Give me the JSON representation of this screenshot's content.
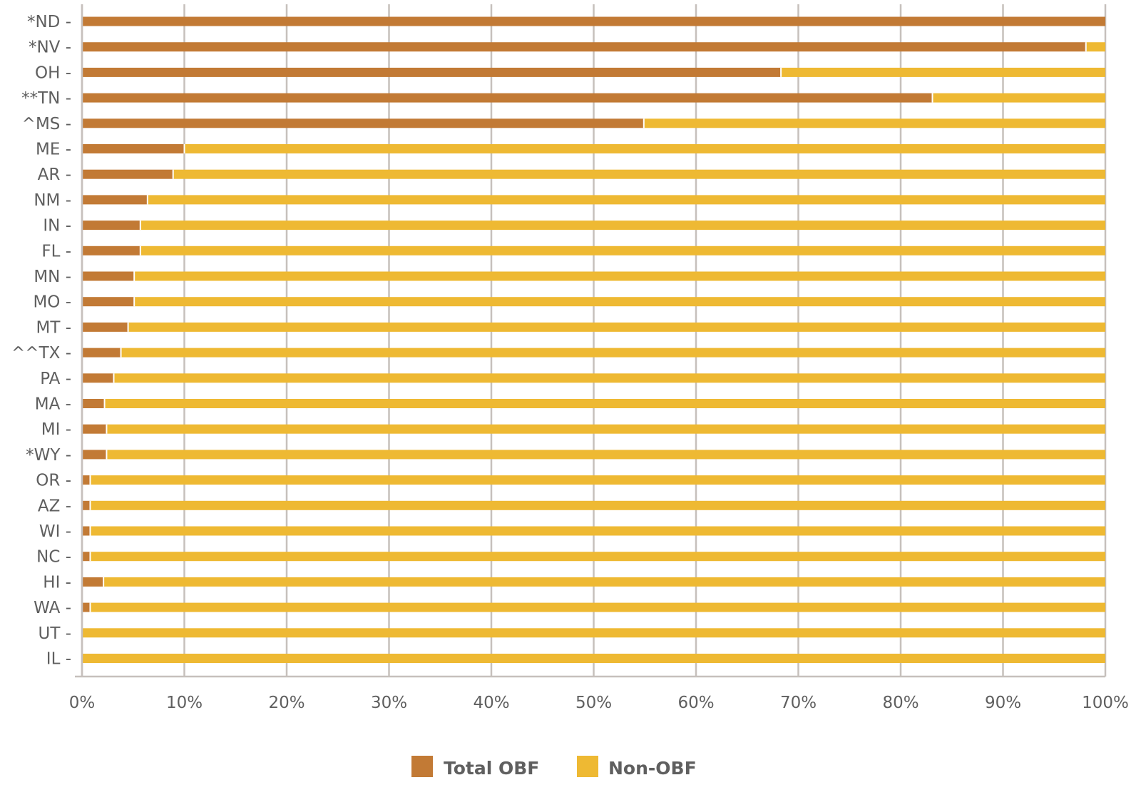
{
  "colors": {
    "obf": "#c27a35",
    "non_obf": "#eeb933",
    "grid": "#c6c0bc",
    "text": "#5f5f5f"
  },
  "chart_data": {
    "type": "bar",
    "orientation": "horizontal",
    "stacked": true,
    "categories": [
      "*ND",
      "*NV",
      "OH",
      "**TN",
      "^MS",
      "ME",
      "AR",
      "NM",
      "IN",
      "FL",
      "MN",
      "MO",
      "MT",
      "^^TX",
      "PA",
      "MA",
      "MI",
      "*WY",
      "OR",
      "AZ",
      "WI",
      "NC",
      "HI",
      "WA",
      "UT",
      "IL"
    ],
    "series": [
      {
        "name": "Total OBF",
        "values": [
          100,
          98.1,
          68.3,
          83.1,
          54.9,
          10,
          8.9,
          6.4,
          5.7,
          5.7,
          5.1,
          5.1,
          4.5,
          3.8,
          3.1,
          2.2,
          2.4,
          2.4,
          0.8,
          0.8,
          0.8,
          0.8,
          2.1,
          0.8,
          0,
          0
        ]
      },
      {
        "name": "Non-OBF",
        "values": [
          0,
          1.9,
          31.7,
          16.9,
          45.1,
          90,
          91.1,
          93.6,
          94.3,
          94.3,
          94.9,
          94.9,
          95.5,
          96.2,
          96.9,
          97.8,
          97.6,
          97.6,
          99.2,
          99.2,
          99.2,
          99.2,
          97.9,
          99.2,
          100,
          100
        ]
      }
    ],
    "xlim": [
      0,
      100
    ],
    "xticks": [
      "0%",
      "10%",
      "20%",
      "30%",
      "40%",
      "50%",
      "60%",
      "70%",
      "80%",
      "90%",
      "100%"
    ],
    "xlabel": "",
    "ylabel": "",
    "grid": true,
    "legend": {
      "position": "bottom-center",
      "entries": [
        "Total OBF",
        "Non-OBF"
      ]
    }
  }
}
